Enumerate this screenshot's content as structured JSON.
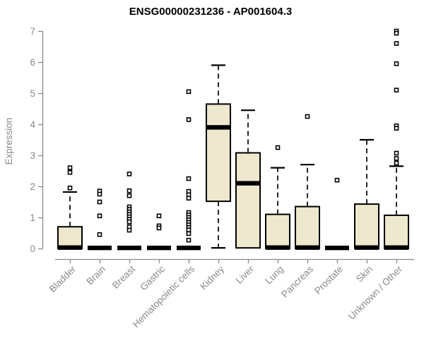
{
  "chart_data": {
    "type": "boxplot",
    "title": "ENSG00000231236 - AP001604.3",
    "ylabel": "Expression",
    "xlabel": "",
    "ylim": [
      0,
      7
    ],
    "yticks": [
      0,
      1,
      2,
      3,
      4,
      5,
      6,
      7
    ],
    "grid": "off",
    "categories": [
      "Bladder",
      "Brain",
      "Breast",
      "Gastric",
      "Hematopoietic cells",
      "Kidney",
      "Liver",
      "Lung",
      "Pancreas",
      "Prostate",
      "Skin",
      "Unknown / Other"
    ],
    "groups": [
      {
        "label": "Bladder",
        "q1": 0,
        "median": 0.03,
        "q3": 0.7,
        "whisker_low": 0,
        "whisker_high": 1.82,
        "outliers": [
          2.6,
          2.45,
          1.95
        ]
      },
      {
        "label": "Brain",
        "q1": 0.02,
        "median": 0.02,
        "q3": 0.02,
        "whisker_low": 0.02,
        "whisker_high": 0.02,
        "outliers": [
          1.85,
          1.75,
          1.5,
          1.05,
          0.45
        ]
      },
      {
        "label": "Breast",
        "q1": 0.02,
        "median": 0.02,
        "q3": 0.02,
        "whisker_low": 0.02,
        "whisker_high": 0.02,
        "outliers": [
          2.4,
          1.86,
          1.7,
          1.34,
          1.26,
          1.18,
          1.1,
          1.02,
          0.94,
          0.86,
          0.7,
          0.59
        ]
      },
      {
        "label": "Gastric",
        "q1": 0.02,
        "median": 0.02,
        "q3": 0.02,
        "whisker_low": 0.02,
        "whisker_high": 0.02,
        "outliers": [
          1.05,
          0.73,
          0.66
        ]
      },
      {
        "label": "Hematopoietic cells",
        "q1": 0.02,
        "median": 0.02,
        "q3": 0.02,
        "whisker_low": 0.02,
        "whisker_high": 0.02,
        "outliers": [
          5.05,
          4.15,
          2.25,
          1.84,
          1.73,
          1.62,
          1.16,
          1.08,
          1.0,
          0.92,
          0.84,
          0.76,
          0.68,
          0.6,
          0.48,
          0.27
        ]
      },
      {
        "label": "Kidney",
        "q1": 1.52,
        "median": 3.9,
        "q3": 4.65,
        "whisker_low": 0.02,
        "whisker_high": 5.9,
        "outliers": []
      },
      {
        "label": "Liver",
        "q1": 0.02,
        "median": 2.1,
        "q3": 3.08,
        "whisker_low": 0.02,
        "whisker_high": 4.45,
        "outliers": []
      },
      {
        "label": "Lung",
        "q1": 0,
        "median": 0.03,
        "q3": 1.1,
        "whisker_low": 0,
        "whisker_high": 2.6,
        "outliers": [
          3.25
        ]
      },
      {
        "label": "Pancreas",
        "q1": 0,
        "median": 0.03,
        "q3": 1.35,
        "whisker_low": 0,
        "whisker_high": 2.7,
        "outliers": [
          4.25
        ]
      },
      {
        "label": "Prostate",
        "q1": 0.02,
        "median": 0.02,
        "q3": 0.02,
        "whisker_low": 0.02,
        "whisker_high": 0.02,
        "outliers": [
          2.2
        ]
      },
      {
        "label": "Skin",
        "q1": 0,
        "median": 0.03,
        "q3": 1.43,
        "whisker_low": 0,
        "whisker_high": 3.5,
        "outliers": []
      },
      {
        "label": "Unknown / Other",
        "q1": 0,
        "median": 0.03,
        "q3": 1.07,
        "whisker_low": 0,
        "whisker_high": 2.65,
        "outliers": [
          7.0,
          6.93,
          6.6,
          5.95,
          5.1,
          3.95,
          3.87,
          3.07,
          2.9,
          2.75
        ]
      }
    ],
    "colors": {
      "box_fill": "#ede8ce",
      "box_stroke": "#000000",
      "median": "#000000",
      "axis": "#8a8a8a",
      "tick_label": "#8a8a8a",
      "title": "#000000",
      "background": "#ffffff"
    }
  }
}
